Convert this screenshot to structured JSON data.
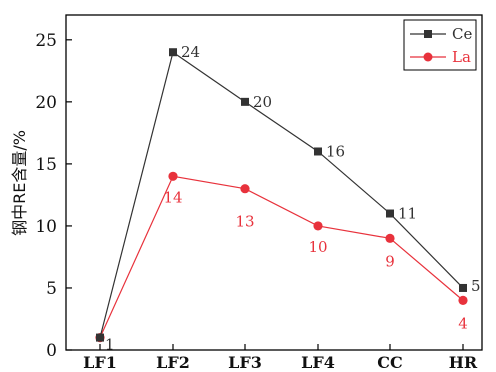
{
  "chart_data": {
    "type": "line",
    "categories": [
      "LF1",
      "LF2",
      "LF3",
      "LF4",
      "CC",
      "HR"
    ],
    "ylabel": "钢中RE含量/%",
    "ylim": [
      0,
      27
    ],
    "yticks": [
      0,
      5,
      10,
      15,
      20,
      25
    ],
    "legend_position": "top-right",
    "series": [
      {
        "name": "Ce",
        "values": [
          1,
          24,
          20,
          16,
          11,
          5
        ],
        "labels": [
          "1",
          "24",
          "20",
          "16",
          "11",
          "5"
        ],
        "color": "#333333",
        "marker": "square"
      },
      {
        "name": "La",
        "values": [
          1,
          14,
          13,
          10,
          9,
          4
        ],
        "labels": [
          "",
          "14",
          "13",
          "10",
          "9",
          "4"
        ],
        "color": "#e8323c",
        "marker": "circle"
      }
    ]
  }
}
